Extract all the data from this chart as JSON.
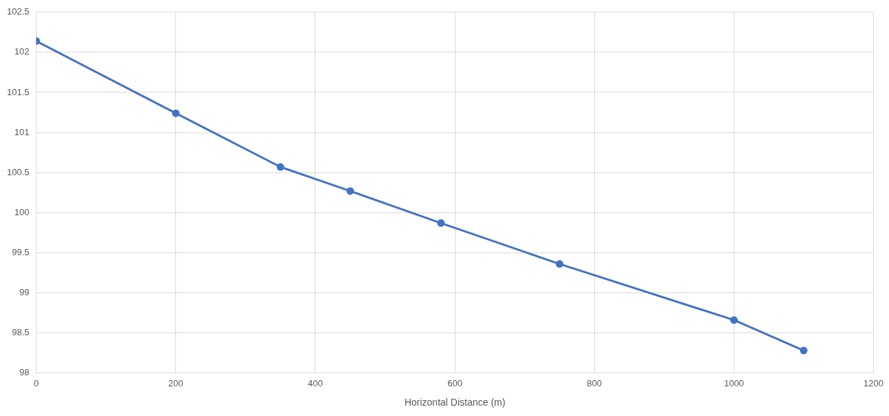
{
  "chart_data": {
    "type": "line",
    "xlabel": "Horizontal Distance (m)",
    "x": [
      0,
      200,
      350,
      450,
      580,
      750,
      1000,
      1100
    ],
    "series": [
      {
        "color": "#4472c4",
        "values": [
          102.14,
          101.24,
          100.57,
          100.27,
          99.87,
          99.36,
          98.66,
          98.28
        ]
      }
    ],
    "xlim": [
      0,
      1200
    ],
    "xticks": [
      0,
      200,
      400,
      600,
      800,
      1000,
      1200
    ],
    "ylim": [
      98,
      102.5
    ],
    "yticks": [
      98,
      98.5,
      99,
      99.5,
      100,
      100.5,
      101,
      101.5,
      102,
      102.5
    ],
    "grid": true,
    "legend": false,
    "marker": "circle",
    "line_style": "solid"
  }
}
